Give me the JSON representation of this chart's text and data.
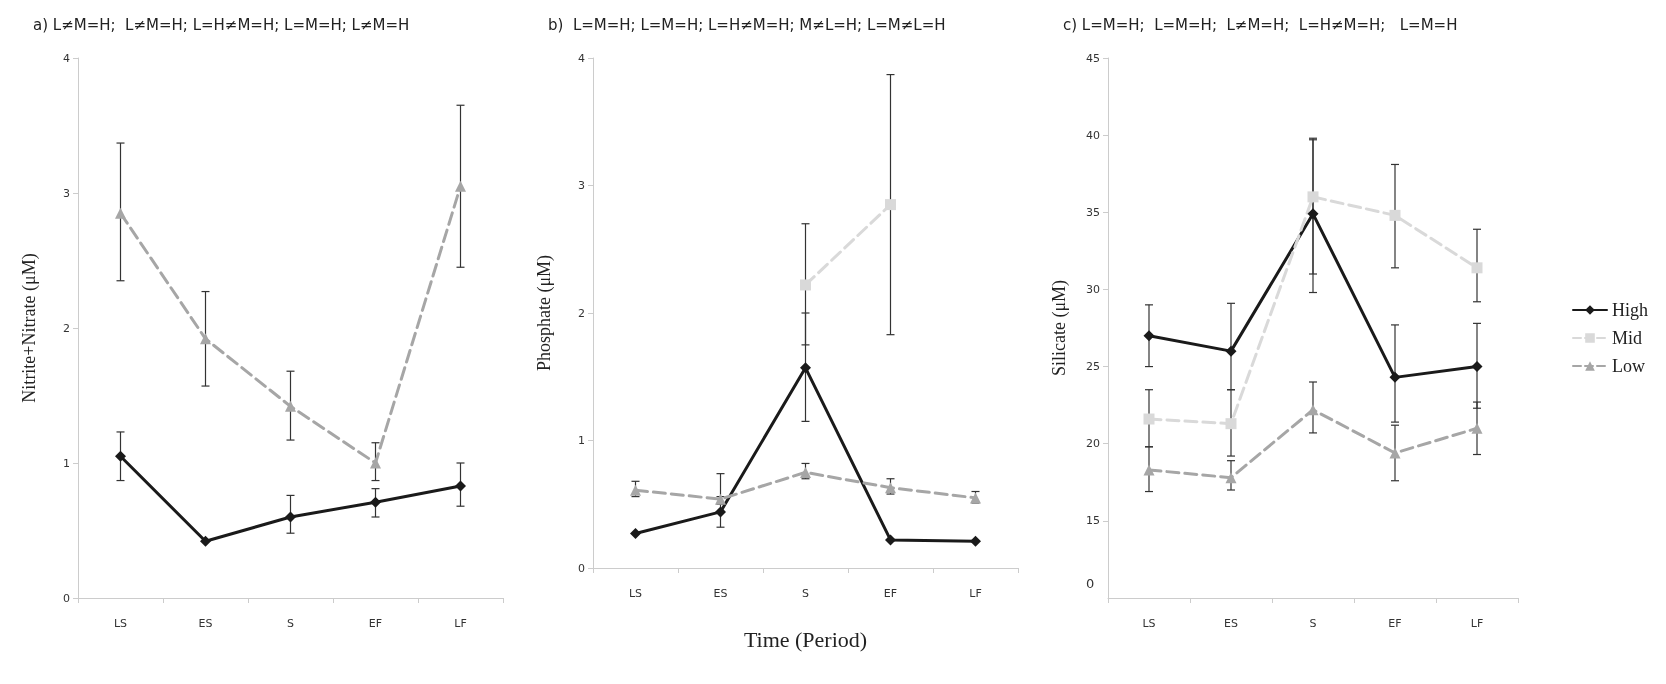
{
  "chart_data": [
    {
      "type": "line",
      "title": "a) L≠M=H;  L≠M=H; L=H≠M=H; L=M=H; L≠M=H",
      "ylabel": "Nitrite+Nitrate (μM)",
      "categories": [
        "LS",
        "ES",
        "S",
        "EF",
        "LF"
      ],
      "ylim": [
        0,
        4
      ],
      "yticks": [
        0,
        1,
        2,
        3,
        4
      ],
      "series": [
        {
          "color": "#1a1a1a",
          "marker": "diamond",
          "line_style": "solid",
          "values": [
            1.05,
            0.42,
            0.6,
            0.71,
            0.83
          ],
          "errors": [
            [
              0.87,
              1.23
            ],
            null,
            [
              0.48,
              0.76
            ],
            [
              0.6,
              0.81
            ],
            [
              0.68,
              1.0
            ]
          ]
        },
        {
          "color": "#a6a6a6",
          "marker": "triangle",
          "line_style": "dashed",
          "values": [
            2.85,
            1.92,
            1.42,
            1.0,
            3.05
          ],
          "errors": [
            [
              2.35,
              3.37
            ],
            [
              1.57,
              2.27
            ],
            [
              1.17,
              1.68
            ],
            [
              0.87,
              1.15
            ],
            [
              2.45,
              3.65
            ]
          ]
        }
      ]
    },
    {
      "type": "line",
      "title": "b)  L=M=H; L=M=H; L=H≠M=H; M≠L=H; L=M≠L=H",
      "ylabel": "Phosphate (μM)",
      "xlabel": "Time (Period)",
      "categories": [
        "LS",
        "ES",
        "S",
        "EF",
        "LF"
      ],
      "ylim": [
        0,
        4
      ],
      "yticks": [
        0,
        1,
        2,
        3,
        4
      ],
      "series": [
        {
          "color": "#1a1a1a",
          "marker": "diamond",
          "line_style": "solid",
          "values": [
            0.27,
            0.44,
            1.57,
            0.22,
            0.21
          ],
          "errors": [
            null,
            [
              0.32,
              0.56
            ],
            [
              1.15,
              2.0
            ],
            null,
            null
          ]
        },
        {
          "color": "#d9d9d9",
          "marker": "square",
          "line_style": "dashed",
          "values": [
            null,
            null,
            2.22,
            2.85,
            null
          ],
          "errors": [
            null,
            null,
            [
              1.75,
              2.7
            ],
            [
              1.83,
              3.87
            ],
            null
          ]
        },
        {
          "color": "#a6a6a6",
          "marker": "triangle",
          "line_style": "dashed",
          "values": [
            0.61,
            0.54,
            0.75,
            0.63,
            0.55
          ],
          "errors": [
            [
              0.56,
              0.68
            ],
            [
              0.5,
              0.74
            ],
            [
              0.7,
              0.82
            ],
            [
              0.58,
              0.7
            ],
            [
              0.51,
              0.6
            ]
          ]
        }
      ]
    },
    {
      "type": "line",
      "title": "c) L=M=H;  L=M=H;  L≠M=H;  L=H≠M=H;   L=M=H",
      "ylabel": "Silicate (μM)",
      "categories": [
        "LS",
        "ES",
        "S",
        "EF",
        "LF"
      ],
      "ylim": [
        10,
        45
      ],
      "yticks": [
        15,
        20,
        25,
        30,
        35,
        40,
        45
      ],
      "annotations": [
        "0"
      ],
      "legend": "right",
      "series": [
        {
          "name": "High",
          "color": "#1a1a1a",
          "marker": "diamond",
          "line_style": "solid",
          "values": [
            27,
            26,
            34.9,
            24.3,
            25
          ],
          "errors": [
            [
              25,
              29
            ],
            [
              23.5,
              29.1
            ],
            [
              29.8,
              39.8
            ],
            [
              21.4,
              27.7
            ],
            [
              22.3,
              27.8
            ]
          ]
        },
        {
          "name": "Mid",
          "color": "#d9d9d9",
          "marker": "square",
          "line_style": "dashed",
          "values": [
            21.6,
            21.3,
            36,
            34.8,
            31.4
          ],
          "errors": [
            [
              19.8,
              23.5
            ],
            [
              19.2,
              23.5
            ],
            [
              31,
              39.7
            ],
            [
              31.4,
              38.1
            ],
            [
              29.2,
              33.9
            ]
          ]
        },
        {
          "name": "Low",
          "color": "#a6a6a6",
          "marker": "triangle",
          "line_style": "dashed",
          "values": [
            18.3,
            17.8,
            22.2,
            19.4,
            21
          ],
          "errors": [
            [
              16.9,
              19.8
            ],
            [
              17,
              18.9
            ],
            [
              20.7,
              24
            ],
            [
              17.6,
              21.2
            ],
            [
              19.3,
              22.7
            ]
          ]
        }
      ]
    }
  ]
}
